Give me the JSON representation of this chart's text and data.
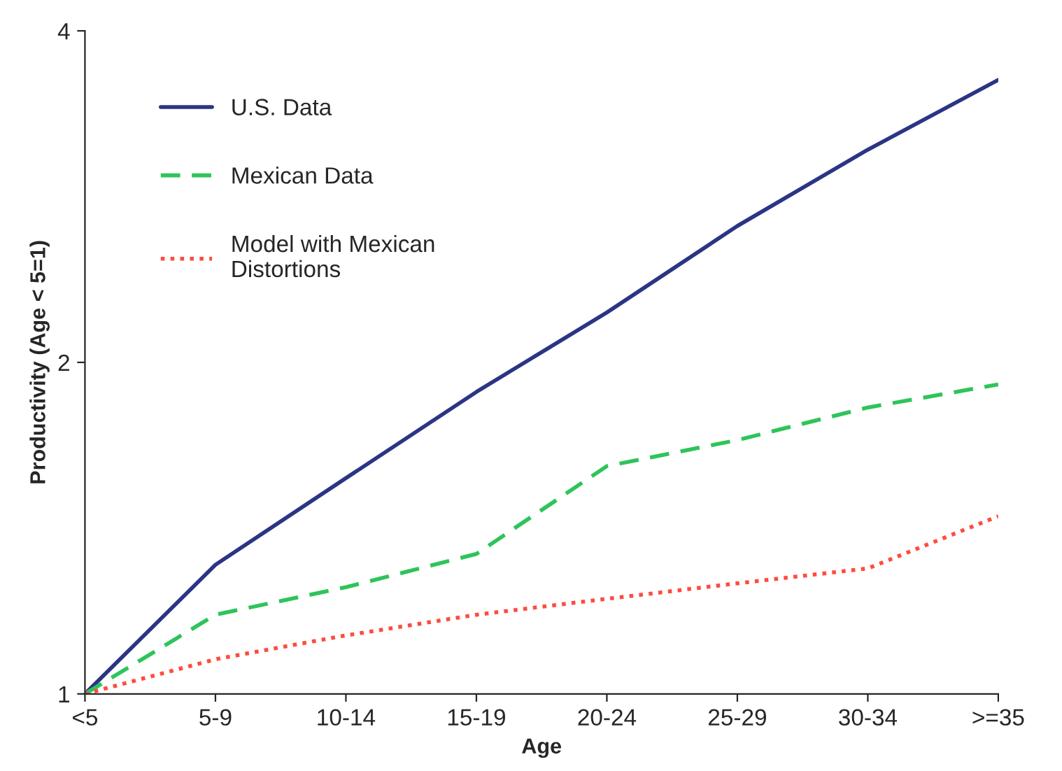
{
  "chart_data": {
    "type": "line",
    "xlabel": "Age",
    "ylabel": "Productivity (Age < 5=1)",
    "categories": [
      "<5",
      "5-9",
      "10-14",
      "15-19",
      "20-24",
      "25-29",
      "30-34",
      ">=35"
    ],
    "series": [
      {
        "name": "U.S. Data",
        "color": "#2b3585",
        "line_style": "solid",
        "values": [
          1,
          1.31,
          1.57,
          1.88,
          2.22,
          2.66,
          3.12,
          3.61
        ]
      },
      {
        "name": "Mexican Data",
        "color": "#2ec45a",
        "line_style": "dashed",
        "values": [
          1,
          1.18,
          1.25,
          1.34,
          1.61,
          1.7,
          1.82,
          1.91
        ]
      },
      {
        "name": "Model with Mexican\nDistortions",
        "color": "#ff4b3e",
        "line_style": "dotted",
        "values": [
          1,
          1.075,
          1.13,
          1.18,
          1.22,
          1.26,
          1.3,
          1.45
        ]
      }
    ],
    "log": "y",
    "ylim": [
      1,
      4
    ],
    "yticks": [
      1,
      2,
      4
    ],
    "grid": false,
    "legend": "top left"
  }
}
